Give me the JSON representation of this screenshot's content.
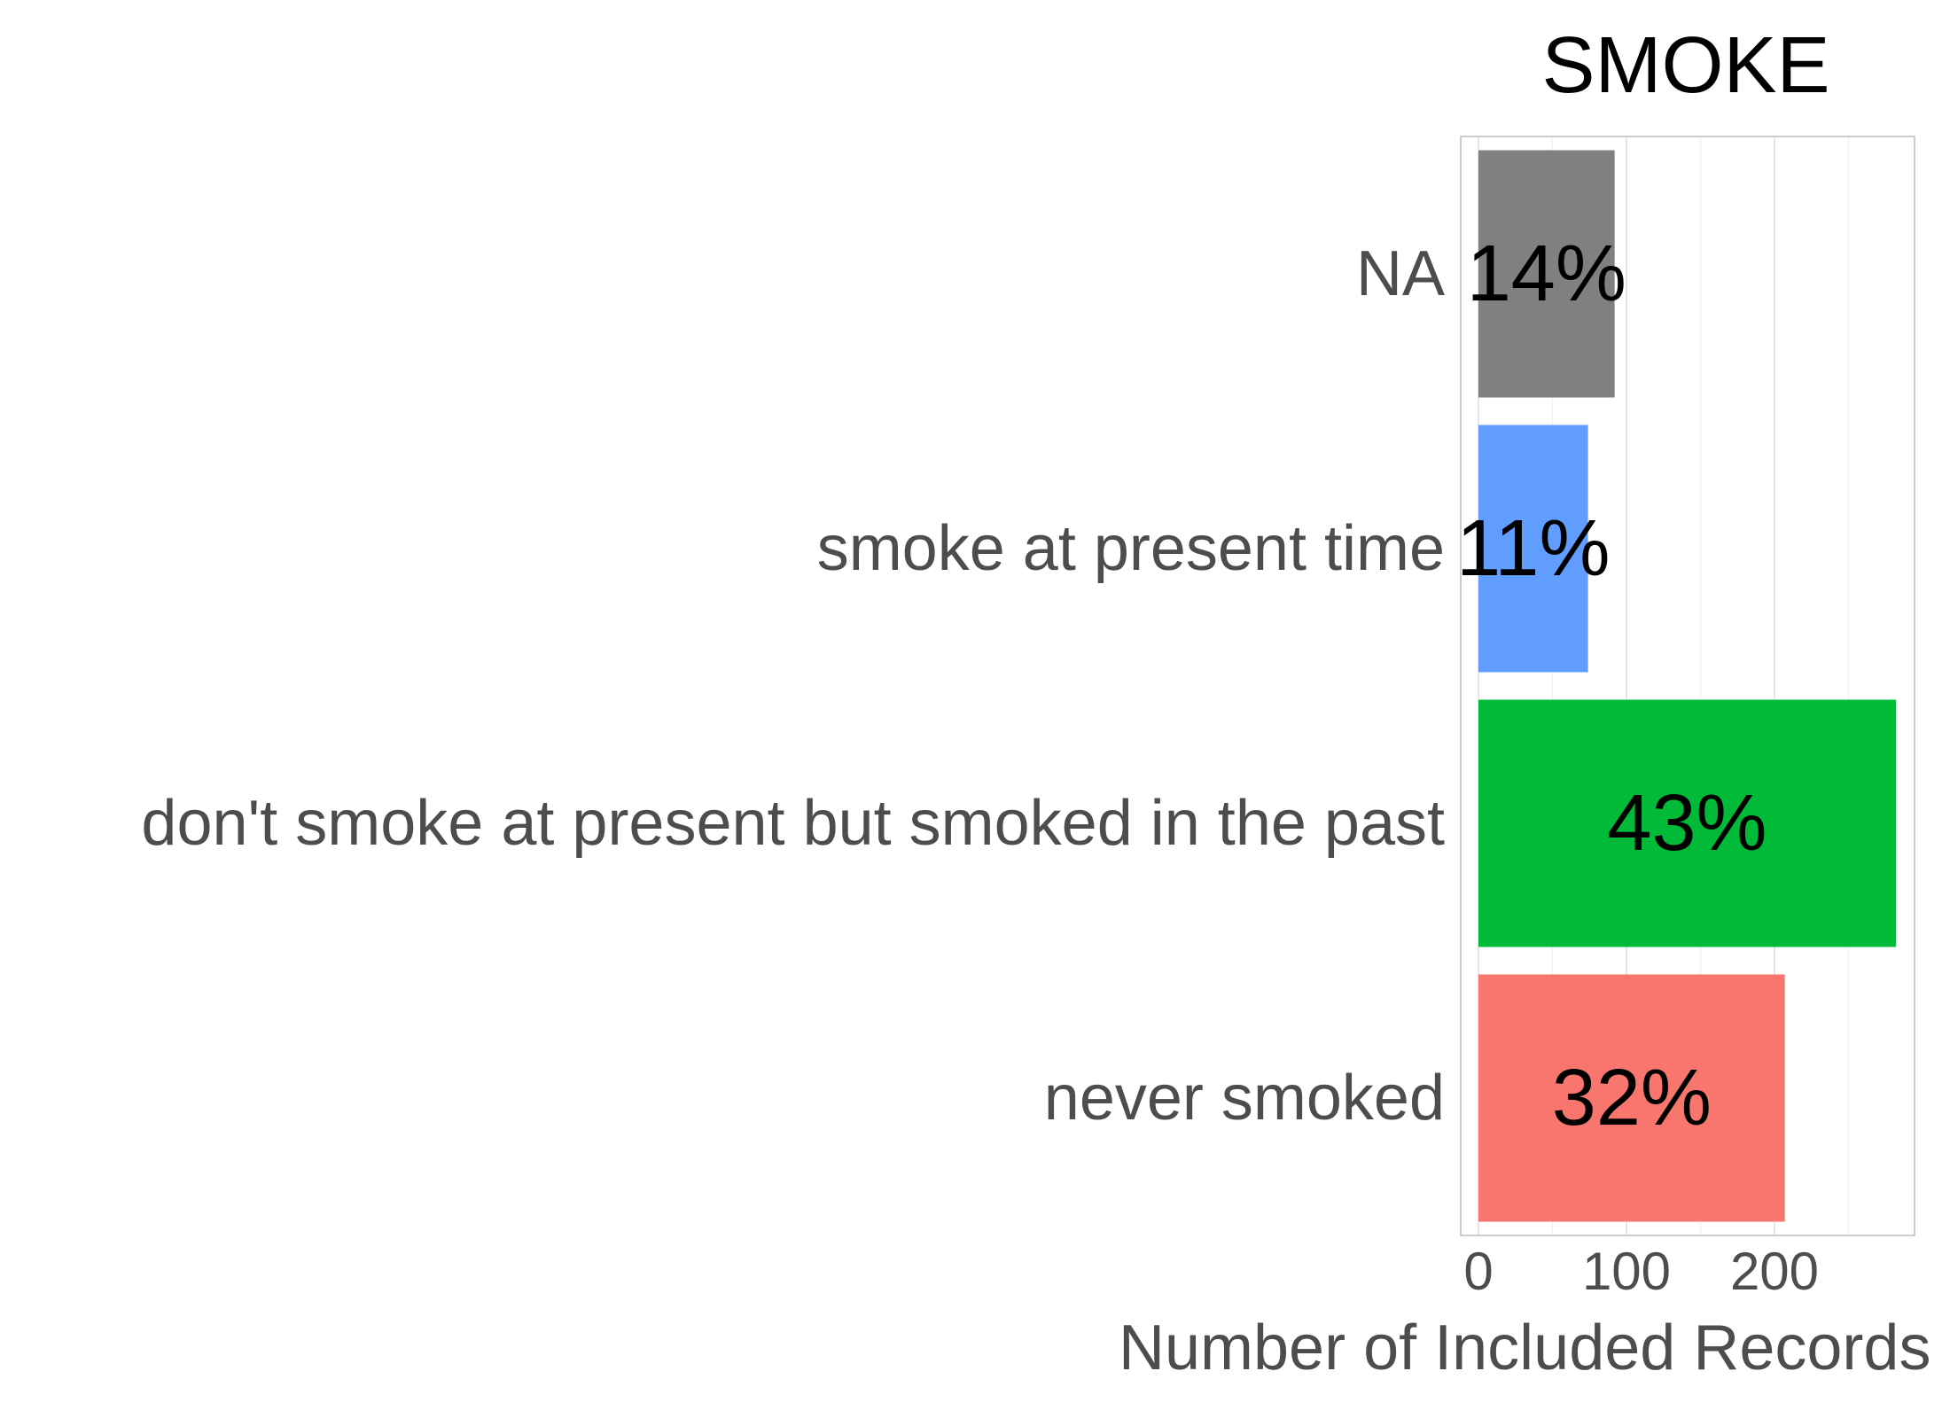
{
  "chart_data": {
    "type": "bar",
    "orientation": "horizontal",
    "title": "SMOKE",
    "xlabel": "Number of Included Records",
    "ylabel": "",
    "xlim": [
      0,
      295
    ],
    "xticks": [
      0,
      100,
      200
    ],
    "categories": [
      "NA",
      "smoke at present time",
      "don't smoke at present but smoked in the past",
      "never smoked"
    ],
    "values": [
      92,
      74,
      282,
      207
    ],
    "labels": [
      "14%",
      "11%",
      "43%",
      "32%"
    ],
    "colors": [
      "#808080",
      "#619CFF",
      "#00BA38",
      "#F8766D"
    ],
    "grid": true,
    "legend": "none"
  }
}
